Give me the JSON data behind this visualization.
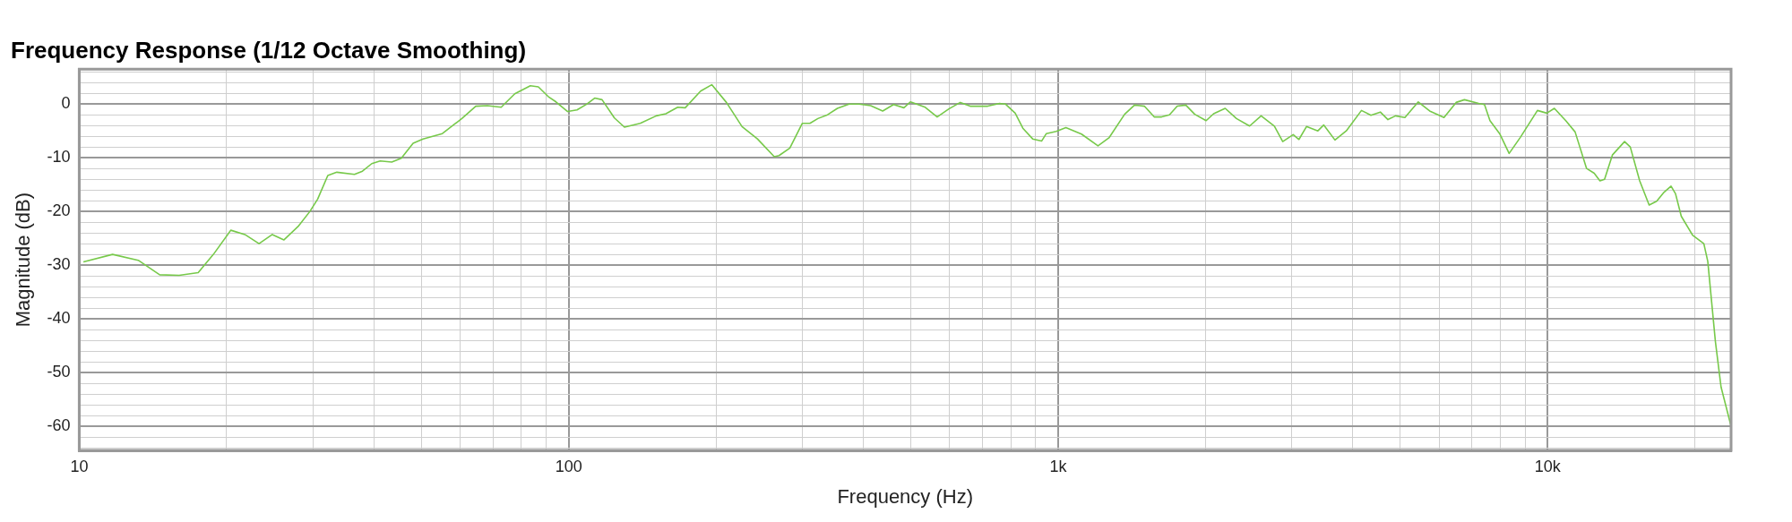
{
  "chart_data": {
    "type": "line",
    "title": "Frequency Response (1/12 Octave Smoothing)",
    "xlabel": "Frequency (Hz)",
    "ylabel": "Magnitude (dB)",
    "log": "x",
    "grid": true,
    "legend": false,
    "marker": "none",
    "line_style": "solid",
    "xlim": [
      10,
      23700
    ],
    "ylim": [
      -64.5,
      6.5
    ],
    "xticks": [
      10,
      {
        "value": 20,
        "label": null
      },
      {
        "value": 30,
        "label": null
      },
      {
        "value": 40,
        "label": null
      },
      {
        "value": 50,
        "label": null
      },
      {
        "value": 60,
        "label": null
      },
      {
        "value": 70,
        "label": null
      },
      {
        "value": 80,
        "label": null
      },
      {
        "value": 90,
        "label": null
      },
      100,
      {
        "value": 200,
        "label": null
      },
      {
        "value": 300,
        "label": null
      },
      {
        "value": 400,
        "label": null
      },
      {
        "value": 500,
        "label": null
      },
      {
        "value": 600,
        "label": null
      },
      {
        "value": 700,
        "label": null
      },
      {
        "value": 800,
        "label": null
      },
      {
        "value": 900,
        "label": null
      },
      {
        "value": 1000,
        "label": "1k"
      },
      {
        "value": 2000,
        "label": null
      },
      {
        "value": 3000,
        "label": null
      },
      {
        "value": 4000,
        "label": null
      },
      {
        "value": 5000,
        "label": null
      },
      {
        "value": 6000,
        "label": null
      },
      {
        "value": 7000,
        "label": null
      },
      {
        "value": 8000,
        "label": null
      },
      {
        "value": 9000,
        "label": null
      },
      {
        "value": 10000,
        "label": "10k"
      },
      {
        "value": 20000,
        "label": null
      }
    ],
    "yticks": [
      {
        "value": 6,
        "label": null
      },
      {
        "value": 4,
        "label": null
      },
      {
        "value": 2,
        "label": null
      },
      0,
      {
        "value": -2,
        "label": null
      },
      {
        "value": -4,
        "label": null
      },
      {
        "value": -6,
        "label": null
      },
      {
        "value": -8,
        "label": null
      },
      -10,
      {
        "value": -12,
        "label": null
      },
      {
        "value": -14,
        "label": null
      },
      {
        "value": -16,
        "label": null
      },
      {
        "value": -18,
        "label": null
      },
      -20,
      {
        "value": -22,
        "label": null
      },
      {
        "value": -24,
        "label": null
      },
      {
        "value": -26,
        "label": null
      },
      {
        "value": -28,
        "label": null
      },
      -30,
      {
        "value": -32,
        "label": null
      },
      {
        "value": -34,
        "label": null
      },
      {
        "value": -36,
        "label": null
      },
      {
        "value": -38,
        "label": null
      },
      -40,
      {
        "value": -42,
        "label": null
      },
      {
        "value": -44,
        "label": null
      },
      {
        "value": -46,
        "label": null
      },
      {
        "value": -48,
        "label": null
      },
      -50,
      {
        "value": -52,
        "label": null
      },
      {
        "value": -54,
        "label": null
      },
      {
        "value": -56,
        "label": null
      },
      {
        "value": -58,
        "label": null
      },
      -60,
      {
        "value": -62,
        "label": null
      },
      {
        "value": -64,
        "label": null
      }
    ],
    "series": [
      {
        "color": "#77c94a",
        "x": [
          10.2,
          11.7,
          13.2,
          14.6,
          16.0,
          17.5,
          18.8,
          20.4,
          21.8,
          23.3,
          24.8,
          26.2,
          28.0,
          29.6,
          30.7,
          32.2,
          33.6,
          36.5,
          37.9,
          39.6,
          41.2,
          43.5,
          45.5,
          48.1,
          50.4,
          55.2,
          60.5,
          64.6,
          68.2,
          72.8,
          77.6,
          83.5,
          86.7,
          90.8,
          94.2,
          99.5,
          104,
          109,
          113,
          117,
          124,
          130,
          140,
          151,
          158,
          167,
          173,
          186,
          196,
          210,
          226,
          243,
          263,
          269,
          283,
          300,
          311,
          323,
          338,
          354,
          374,
          392,
          414,
          438,
          461,
          484,
          499,
          535,
          566,
          598,
          631,
          661,
          718,
          759,
          780,
          817,
          847,
          887,
          925,
          946,
          991,
          1037,
          1116,
          1206,
          1270,
          1367,
          1432,
          1500,
          1571,
          1627,
          1688,
          1751,
          1823,
          1901,
          2006,
          2078,
          2194,
          2313,
          2461,
          2598,
          2765,
          2876,
          3021,
          3104,
          3216,
          3393,
          3487,
          3677,
          3878,
          4165,
          4355,
          4552,
          4718,
          4889,
          5110,
          5441,
          5741,
          6141,
          6502,
          6761,
          7231,
          7430,
          7624,
          7978,
          8343,
          8796,
          9532,
          9963,
          10320,
          10890,
          11380,
          12010,
          12450,
          12790,
          13070,
          13560,
          14360,
          14750,
          15420,
          16120,
          16700,
          17300,
          17870,
          18250,
          18750,
          19770,
          20850,
          21240,
          22020,
          22610,
          23700
        ],
        "values": [
          -29.4,
          -28.0,
          -29.1,
          -31.8,
          -31.9,
          -31.4,
          -28.0,
          -23.5,
          -24.3,
          -26.0,
          -24.3,
          -25.3,
          -22.8,
          -20.0,
          -17.7,
          -13.3,
          -12.7,
          -13.1,
          -12.5,
          -11.1,
          -10.6,
          -10.8,
          -10.1,
          -7.3,
          -6.5,
          -5.5,
          -2.7,
          -0.4,
          -0.3,
          -0.6,
          1.9,
          3.4,
          3.2,
          1.4,
          0.4,
          -1.4,
          -1.1,
          0,
          1.1,
          0.8,
          -2.6,
          -4.3,
          -3.6,
          -2.2,
          -1.8,
          -0.6,
          -0.7,
          2.4,
          3.6,
          0.3,
          -4.2,
          -6.5,
          -9.8,
          -9.6,
          -8.2,
          -3.6,
          -3.6,
          -2.7,
          -2.0,
          -0.8,
          0,
          0,
          -0.3,
          -1.3,
          -0.1,
          -0.7,
          0.4,
          -0.6,
          -2.4,
          -0.9,
          0.3,
          -0.4,
          -0.4,
          0.1,
          0,
          -1.7,
          -4.5,
          -6.5,
          -6.9,
          -5.5,
          -5.1,
          -4.4,
          -5.6,
          -7.8,
          -6.3,
          -1.9,
          -0.2,
          -0.4,
          -2.4,
          -2.4,
          -2.0,
          -0.4,
          -0.2,
          -1.9,
          -3.1,
          -1.8,
          -0.8,
          -2.7,
          -4.1,
          -2.2,
          -4.1,
          -7.0,
          -5.7,
          -6.6,
          -4.2,
          -5.0,
          -3.9,
          -6.7,
          -5.0,
          -1.2,
          -2.1,
          -1.5,
          -2.9,
          -2.2,
          -2.5,
          0.4,
          -1.3,
          -2.5,
          0.3,
          0.8,
          0.1,
          -0.1,
          -3.1,
          -5.5,
          -9.2,
          -6.2,
          -1.2,
          -1.7,
          -0.8,
          -3.1,
          -5.2,
          -12.0,
          -12.9,
          -14.3,
          -14.0,
          -9.5,
          -7.0,
          -8.0,
          -14.3,
          -18.8,
          -18.1,
          -16.4,
          -15.3,
          -16.7,
          -20.9,
          -24.4,
          -26.0,
          -29.3,
          -44.3,
          -52.7,
          -60.0
        ]
      }
    ]
  }
}
